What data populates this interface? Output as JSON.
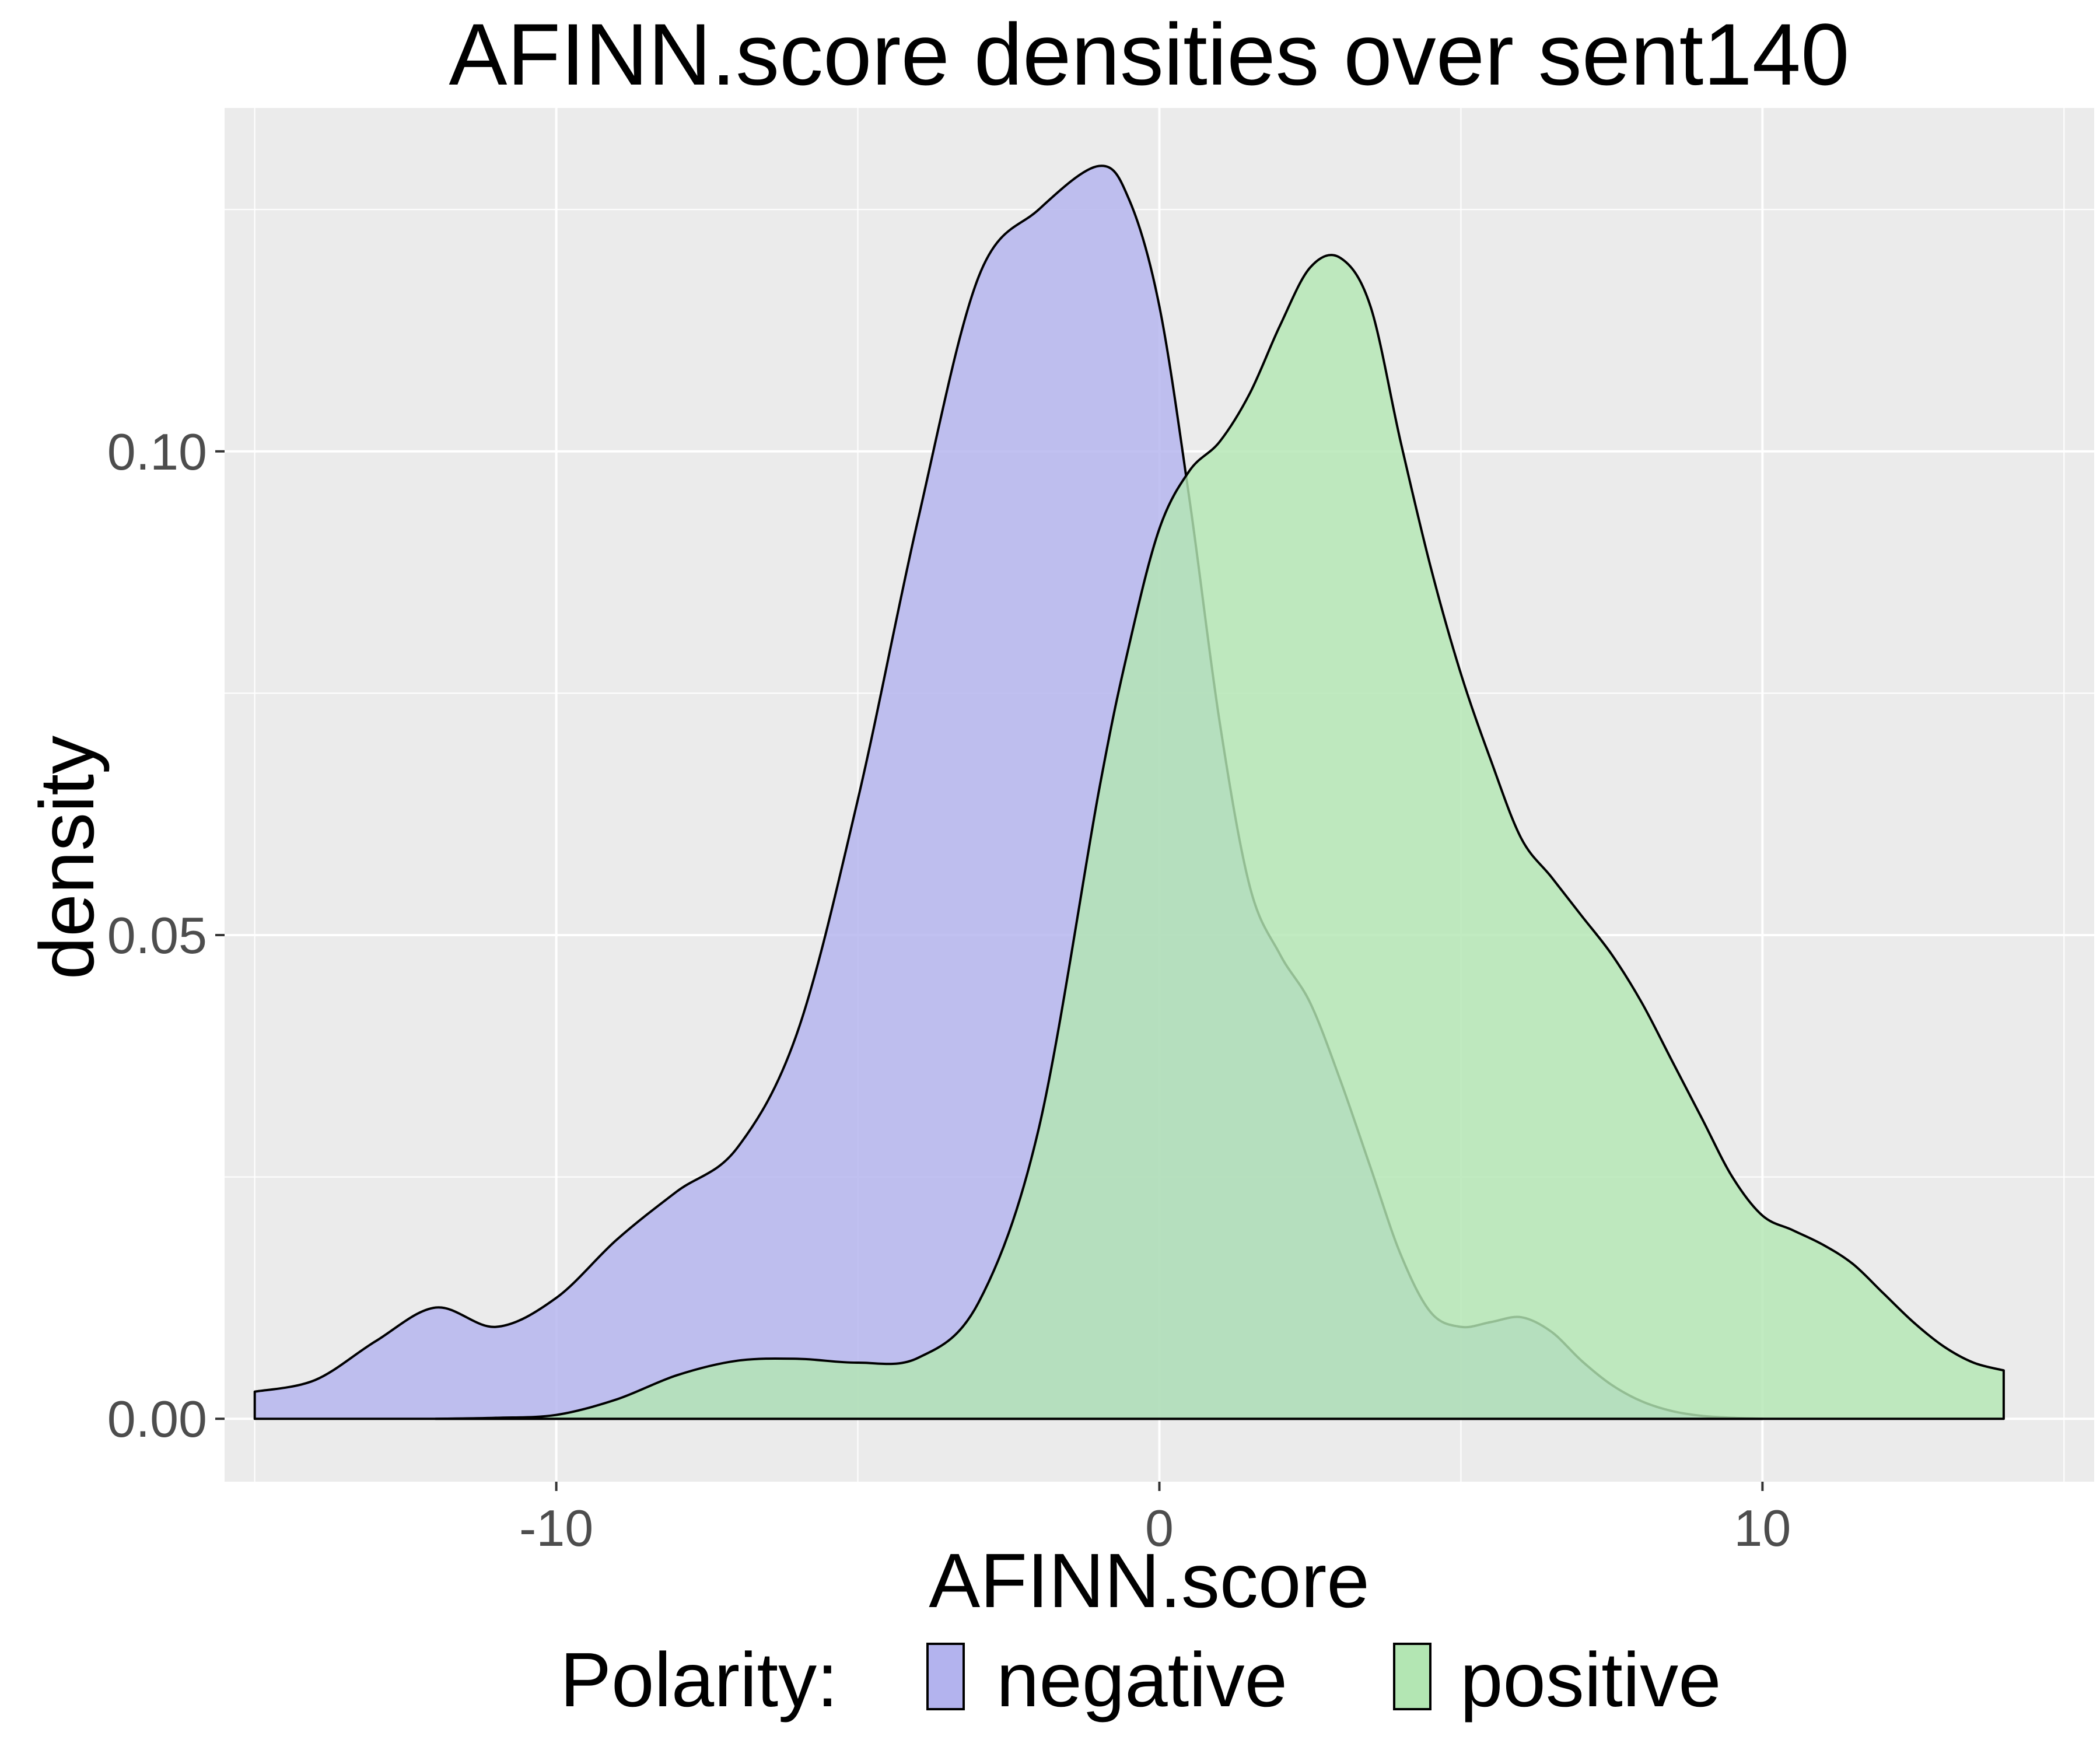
{
  "chart_data": {
    "type": "area",
    "title": "AFINN.score densities over sent140",
    "xlabel": "AFINN.score",
    "ylabel": "density",
    "xlim": [
      -15.5,
      15.5
    ],
    "ylim": [
      -0.0065,
      0.1355
    ],
    "x_ticks": [
      -10,
      0,
      10
    ],
    "x_tick_labels": [
      "-10",
      "0",
      "10"
    ],
    "y_ticks": [
      0.0,
      0.05,
      0.1
    ],
    "y_tick_labels": [
      "0.00",
      "0.05",
      "0.10"
    ],
    "grid": true,
    "panel_background": "#ebebeb",
    "legend": {
      "position": "bottom",
      "title": "Polarity:",
      "entries": [
        "negative",
        "positive"
      ]
    },
    "series": [
      {
        "name": "negative",
        "color": "#b3b3ee",
        "x": [
          -15,
          -14,
          -13,
          -12,
          -11,
          -10,
          -9,
          -8,
          -7,
          -6,
          -5,
          -4,
          -3,
          -2,
          -1,
          -0.5,
          0,
          0.5,
          1,
          1.5,
          2,
          2.5,
          3,
          3.5,
          4,
          4.5,
          5,
          5.5,
          6,
          6.5,
          7,
          7.5,
          8,
          8.5,
          9,
          9.5,
          10
        ],
        "y": [
          0.0028,
          0.004,
          0.008,
          0.0115,
          0.0095,
          0.0125,
          0.0185,
          0.0235,
          0.028,
          0.04,
          0.064,
          0.093,
          0.118,
          0.125,
          0.1295,
          0.126,
          0.115,
          0.095,
          0.072,
          0.055,
          0.048,
          0.043,
          0.035,
          0.026,
          0.017,
          0.011,
          0.0095,
          0.01,
          0.0105,
          0.009,
          0.006,
          0.0035,
          0.0018,
          0.0008,
          0.0003,
          0.0001,
          0.0
        ]
      },
      {
        "name": "positive",
        "color": "#b3e6b3",
        "x": [
          -12,
          -11,
          -10,
          -9,
          -8,
          -7,
          -6,
          -5,
          -4,
          -3,
          -2,
          -1,
          -0.5,
          0,
          0.5,
          1,
          1.5,
          2,
          2.5,
          3,
          3.5,
          4,
          4.5,
          5,
          5.5,
          6,
          6.5,
          7,
          7.5,
          8,
          8.5,
          9,
          9.5,
          10,
          10.5,
          11,
          11.5,
          12,
          12.5,
          13,
          13.5,
          14
        ],
        "y": [
          0.0,
          0.0001,
          0.0004,
          0.002,
          0.0045,
          0.006,
          0.0062,
          0.0058,
          0.0063,
          0.012,
          0.03,
          0.065,
          0.08,
          0.092,
          0.098,
          0.101,
          0.106,
          0.113,
          0.119,
          0.12,
          0.115,
          0.101,
          0.088,
          0.077,
          0.068,
          0.06,
          0.056,
          0.052,
          0.048,
          0.043,
          0.037,
          0.031,
          0.025,
          0.021,
          0.0195,
          0.018,
          0.016,
          0.013,
          0.01,
          0.0075,
          0.0058,
          0.005
        ]
      }
    ]
  }
}
